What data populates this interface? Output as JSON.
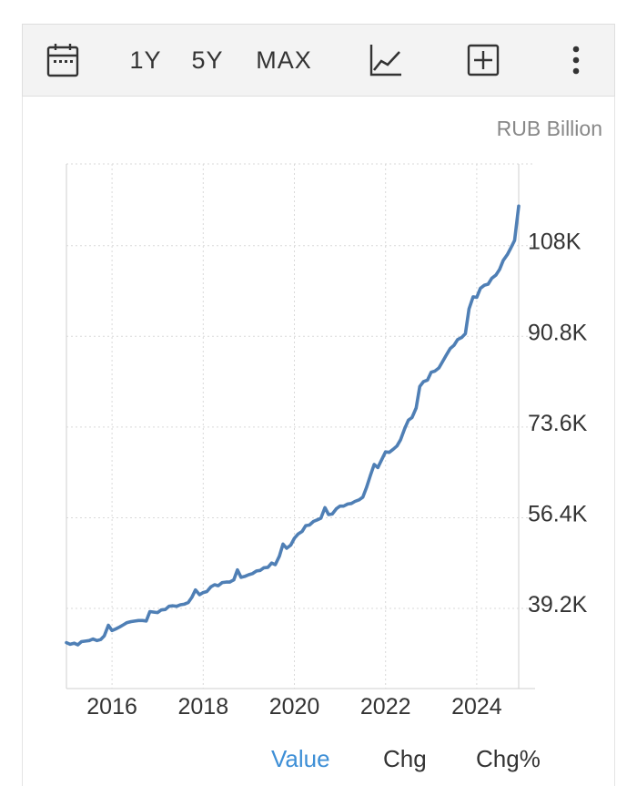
{
  "toolbar": {
    "calendar_icon": "calendar-icon",
    "range_1y": "1Y",
    "range_5y": "5Y",
    "range_max": "MAX",
    "chart_type_icon": "line-chart-icon",
    "add_icon": "plus-square-icon",
    "more_icon": "more-vertical-icon"
  },
  "unit_label": "RUB Billion",
  "tabs": {
    "value": "Value",
    "chg": "Chg",
    "chg_pct": "Chg%"
  },
  "colors": {
    "line": "#4f7fb5",
    "active_tab": "#3e8fd6",
    "grid": "#d9d9d9"
  },
  "chart_data": {
    "type": "line",
    "title": "",
    "xlabel": "",
    "ylabel": "",
    "x_ticks": [
      "2016",
      "2018",
      "2020",
      "2022",
      "2024"
    ],
    "y_ticks": [
      "39.2K",
      "56.4K",
      "73.6K",
      "90.8K",
      "108K"
    ],
    "xlim": [
      2015.0,
      2024.92
    ],
    "ylim": [
      24000,
      123500
    ],
    "grid": true,
    "series": [
      {
        "name": "",
        "x": [
          2015.0,
          2015.08,
          2015.17,
          2015.25,
          2015.33,
          2015.42,
          2015.5,
          2015.58,
          2015.67,
          2015.75,
          2015.83,
          2015.92,
          2016.0,
          2016.08,
          2016.17,
          2016.25,
          2016.33,
          2016.42,
          2016.5,
          2016.58,
          2016.67,
          2016.75,
          2016.83,
          2016.92,
          2017.0,
          2017.08,
          2017.17,
          2017.25,
          2017.33,
          2017.42,
          2017.5,
          2017.58,
          2017.67,
          2017.75,
          2017.83,
          2017.92,
          2018.0,
          2018.08,
          2018.17,
          2018.25,
          2018.33,
          2018.42,
          2018.5,
          2018.58,
          2018.67,
          2018.75,
          2018.83,
          2018.92,
          2019.0,
          2019.08,
          2019.17,
          2019.25,
          2019.33,
          2019.42,
          2019.5,
          2019.58,
          2019.67,
          2019.75,
          2019.83,
          2019.92,
          2020.0,
          2020.08,
          2020.17,
          2020.25,
          2020.33,
          2020.42,
          2020.5,
          2020.58,
          2020.67,
          2020.75,
          2020.83,
          2020.92,
          2021.0,
          2021.08,
          2021.17,
          2021.25,
          2021.33,
          2021.42,
          2021.5,
          2021.58,
          2021.67,
          2021.75,
          2021.83,
          2021.92,
          2022.0,
          2022.08,
          2022.17,
          2022.25,
          2022.33,
          2022.42,
          2022.5,
          2022.58,
          2022.67,
          2022.75,
          2022.83,
          2022.92,
          2023.0,
          2023.08,
          2023.17,
          2023.25,
          2023.33,
          2023.42,
          2023.5,
          2023.58,
          2023.67,
          2023.75,
          2023.83,
          2023.92,
          2024.0,
          2024.08,
          2024.17,
          2024.25,
          2024.33,
          2024.42,
          2024.5,
          2024.58,
          2024.67,
          2024.75,
          2024.83,
          2024.92
        ],
        "values": [
          32700,
          32400,
          32600,
          32300,
          32900,
          33000,
          33100,
          33400,
          33100,
          33300,
          34000,
          36000,
          35000,
          35300,
          35700,
          36100,
          36500,
          36700,
          36800,
          36900,
          36900,
          36800,
          38600,
          38500,
          38400,
          38900,
          39000,
          39600,
          39700,
          39600,
          39900,
          40000,
          40300,
          41300,
          42700,
          41800,
          42200,
          42400,
          43300,
          43700,
          43500,
          44100,
          44200,
          44200,
          44600,
          46500,
          45100,
          45300,
          45600,
          45800,
          46300,
          46400,
          46900,
          47000,
          47800,
          47500,
          49100,
          51400,
          50600,
          51200,
          52500,
          53300,
          53800,
          54900,
          55000,
          55700,
          56000,
          56300,
          58300,
          57000,
          57100,
          58100,
          58600,
          58600,
          59000,
          59100,
          59500,
          59800,
          60300,
          62100,
          64500,
          66500,
          65900,
          67500,
          68900,
          68800,
          69400,
          70000,
          71200,
          73300,
          74900,
          75400,
          77200,
          81300,
          82200,
          82500,
          84000,
          84200,
          84800,
          86000,
          87200,
          88500,
          89100,
          90200,
          90600,
          91300,
          96000,
          98300,
          98200,
          99900,
          100500,
          100700,
          101800,
          102400,
          103500,
          105200,
          106300,
          107600,
          109000,
          115500
        ]
      }
    ]
  }
}
